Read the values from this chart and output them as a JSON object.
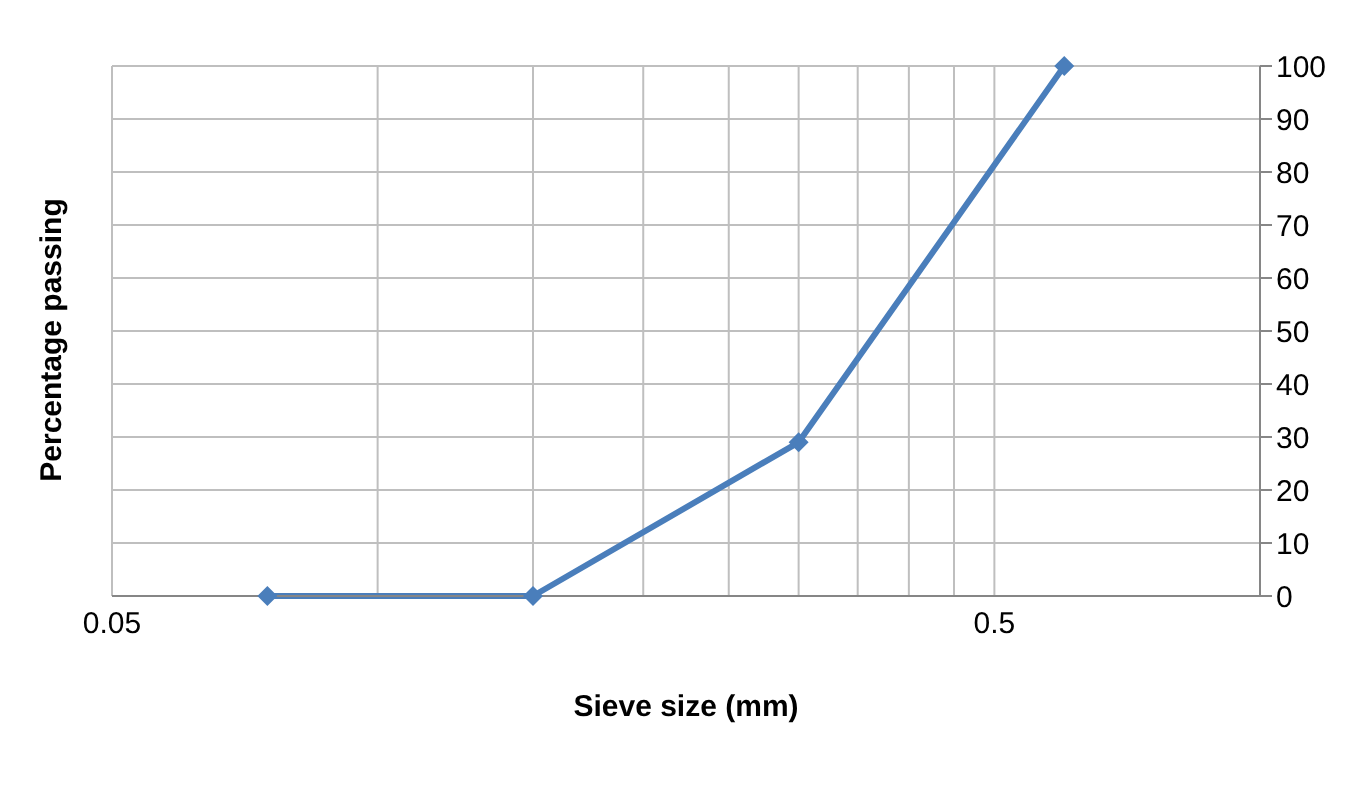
{
  "chart_data": {
    "type": "line",
    "xlabel": "Sieve size (mm)",
    "ylabel": "Percentage passing",
    "x": [
      0.075,
      0.15,
      0.3,
      0.6
    ],
    "series": [
      {
        "color": "#4a7ebb",
        "values": [
          0,
          0,
          29,
          100
        ]
      }
    ],
    "xlim": [
      0.05,
      1
    ],
    "xticks": [
      0.05,
      {
        "value": 0.1,
        "label": null
      },
      {
        "value": 0.15,
        "label": null
      },
      {
        "value": 0.2,
        "label": null
      },
      {
        "value": 0.25,
        "label": null
      },
      {
        "value": 0.3,
        "label": null
      },
      {
        "value": 0.35,
        "label": null
      },
      {
        "value": 0.4,
        "label": null
      },
      {
        "value": 0.45,
        "label": null
      },
      0.5,
      {
        "value": 1,
        "label": null
      }
    ],
    "ylim": [
      0,
      100
    ],
    "yticks": [
      0,
      10,
      20,
      30,
      40,
      50,
      60,
      70,
      80,
      90,
      100
    ],
    "log": "x",
    "grid": true,
    "marker": "diamond",
    "line_style": "solid",
    "legend": false
  }
}
